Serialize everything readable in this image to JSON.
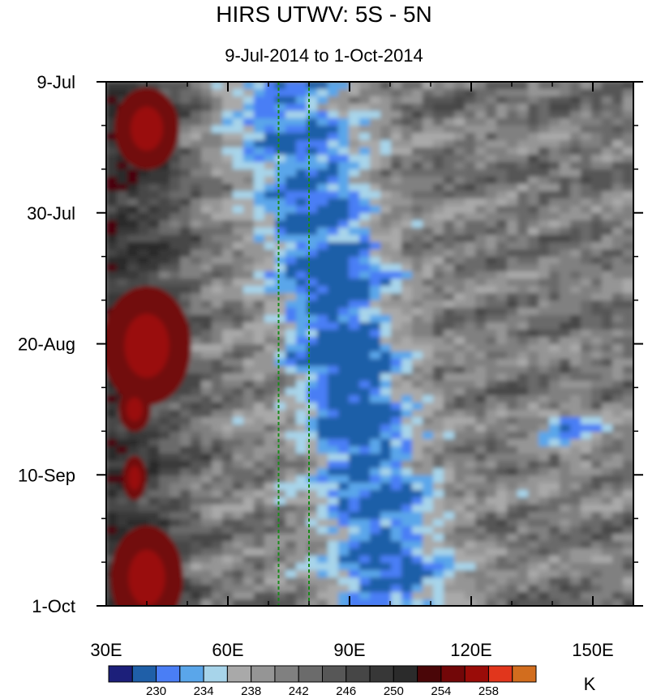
{
  "chart_data": {
    "type": "heatmap",
    "title": "HIRS UTWV: 5S - 5N",
    "subtitle": "9-Jul-2014 to 1-Oct-2014",
    "x_ticks": [
      "30E",
      "60E",
      "90E",
      "120E",
      "150E"
    ],
    "x_tick_values": [
      30,
      60,
      90,
      120,
      150
    ],
    "xlim": [
      30,
      160
    ],
    "y_ticks": [
      "9-Jul",
      "30-Jul",
      "20-Aug",
      "10-Sep",
      "1-Oct"
    ],
    "y_tick_days": [
      0,
      21,
      42,
      63,
      84
    ],
    "ylim_days": [
      0,
      84
    ],
    "reference_lines_lon": [
      72.5,
      80
    ],
    "colorbar": {
      "unit": "K",
      "labels": [
        "230",
        "234",
        "238",
        "242",
        "246",
        "250",
        "254",
        "258"
      ],
      "label_values": [
        230,
        234,
        238,
        242,
        246,
        250,
        254,
        258
      ],
      "levels": [
        228,
        230,
        232,
        234,
        236,
        238,
        240,
        242,
        244,
        246,
        248,
        250,
        252,
        254,
        256,
        258,
        260
      ],
      "colors": [
        "#1c1f7a",
        "#1f5fa8",
        "#4a7ef5",
        "#5aa6ea",
        "#a7d4ea",
        "#a9a9a9",
        "#959595",
        "#808080",
        "#6b6b6b",
        "#575757",
        "#464646",
        "#373737",
        "#2b2b2b",
        "#4a0608",
        "#720708",
        "#9a0c08",
        "#e1361c",
        "#d26d1e"
      ]
    }
  }
}
